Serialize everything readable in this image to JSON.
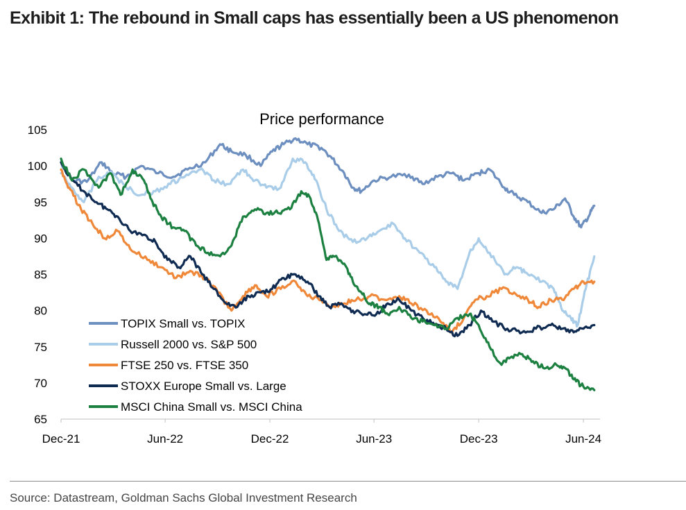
{
  "exhibit": {
    "title": "Exhibit 1: The rebound in Small caps has essentially been a US phenomenon",
    "source": "Source: Datastream, Goldman Sachs Global Investment Research"
  },
  "chart_data": {
    "type": "line",
    "title": "Price performance",
    "xlabel": "",
    "ylabel": "",
    "ylim": [
      65,
      105
    ],
    "yticks": [
      65,
      70,
      75,
      80,
      85,
      90,
      95,
      100,
      105
    ],
    "xlim": [
      "2021-12-01",
      "2024-06-30"
    ],
    "xticks": [
      {
        "label": "Dec-21",
        "date": "2021-12-01"
      },
      {
        "label": "Jun-22",
        "date": "2022-06-01"
      },
      {
        "label": "Dec-22",
        "date": "2022-12-01"
      },
      {
        "label": "Jun-23",
        "date": "2023-06-01"
      },
      {
        "label": "Dec-23",
        "date": "2023-12-01"
      },
      {
        "label": "Jun-24",
        "date": "2024-06-01"
      }
    ],
    "grid": false,
    "legend_position": "bottom-left",
    "series": [
      {
        "name": "TOPIX Small vs. TOPIX",
        "color": "#6d8fc0",
        "points": [
          [
            "2021-12-01",
            100.5
          ],
          [
            "2021-12-20",
            98
          ],
          [
            "2022-01-15",
            97.8
          ],
          [
            "2022-02-10",
            100.5
          ],
          [
            "2022-03-01",
            99
          ],
          [
            "2022-03-25",
            98.5
          ],
          [
            "2022-04-20",
            100
          ],
          [
            "2022-05-20",
            99
          ],
          [
            "2022-06-15",
            98.5
          ],
          [
            "2022-07-10",
            99.5
          ],
          [
            "2022-08-10",
            100.5
          ],
          [
            "2022-09-05",
            103
          ],
          [
            "2022-09-25",
            102
          ],
          [
            "2022-10-20",
            101.5
          ],
          [
            "2022-11-15",
            100
          ],
          [
            "2022-12-05",
            102
          ],
          [
            "2022-12-25",
            103
          ],
          [
            "2023-01-15",
            103.8
          ],
          [
            "2023-02-05",
            103
          ],
          [
            "2023-03-01",
            102.5
          ],
          [
            "2023-03-20",
            101
          ],
          [
            "2023-04-10",
            99
          ],
          [
            "2023-04-25",
            97
          ],
          [
            "2023-05-10",
            96.5
          ],
          [
            "2023-06-01",
            98
          ],
          [
            "2023-07-01",
            98.5
          ],
          [
            "2023-08-01",
            98.8
          ],
          [
            "2023-08-25",
            97.5
          ],
          [
            "2023-09-20",
            98.5
          ],
          [
            "2023-10-15",
            99
          ],
          [
            "2023-11-05",
            98
          ],
          [
            "2023-12-01",
            99
          ],
          [
            "2023-12-20",
            99.5
          ],
          [
            "2024-01-15",
            97
          ],
          [
            "2024-02-01",
            96
          ],
          [
            "2024-02-25",
            95
          ],
          [
            "2024-03-20",
            93.5
          ],
          [
            "2024-04-10",
            94
          ],
          [
            "2024-04-30",
            95.5
          ],
          [
            "2024-05-15",
            93
          ],
          [
            "2024-05-28",
            91.5
          ],
          [
            "2024-06-10",
            93
          ],
          [
            "2024-06-20",
            94.5
          ]
        ]
      },
      {
        "name": "Russell 2000 vs. S&P 500",
        "color": "#a9cde8",
        "points": [
          [
            "2021-12-01",
            99
          ],
          [
            "2021-12-20",
            97
          ],
          [
            "2022-01-10",
            95
          ],
          [
            "2022-02-05",
            98.5
          ],
          [
            "2022-03-01",
            99
          ],
          [
            "2022-03-25",
            97
          ],
          [
            "2022-04-20",
            96
          ],
          [
            "2022-05-15",
            96.5
          ],
          [
            "2022-06-10",
            97.5
          ],
          [
            "2022-07-05",
            98.5
          ],
          [
            "2022-08-01",
            99.5
          ],
          [
            "2022-08-25",
            98
          ],
          [
            "2022-09-20",
            97.5
          ],
          [
            "2022-10-15",
            99.5
          ],
          [
            "2022-11-05",
            98
          ],
          [
            "2022-11-25",
            97
          ],
          [
            "2022-12-20",
            97
          ],
          [
            "2023-01-10",
            101
          ],
          [
            "2023-02-01",
            100.5
          ],
          [
            "2023-02-20",
            98
          ],
          [
            "2023-03-10",
            94
          ],
          [
            "2023-04-01",
            91
          ],
          [
            "2023-04-25",
            89.5
          ],
          [
            "2023-05-20",
            90
          ],
          [
            "2023-06-10",
            91
          ],
          [
            "2023-07-05",
            92
          ],
          [
            "2023-07-25",
            90
          ],
          [
            "2023-08-20",
            88
          ],
          [
            "2023-09-15",
            86
          ],
          [
            "2023-10-05",
            84
          ],
          [
            "2023-10-25",
            83
          ],
          [
            "2023-11-15",
            88
          ],
          [
            "2023-12-01",
            90
          ],
          [
            "2023-12-20",
            88
          ],
          [
            "2024-01-15",
            85
          ],
          [
            "2024-02-05",
            86
          ],
          [
            "2024-02-25",
            85
          ],
          [
            "2024-03-20",
            84
          ],
          [
            "2024-04-10",
            83
          ],
          [
            "2024-04-25",
            80
          ],
          [
            "2024-05-10",
            79
          ],
          [
            "2024-05-22",
            78
          ],
          [
            "2024-06-05",
            83
          ],
          [
            "2024-06-20",
            87.5
          ]
        ]
      },
      {
        "name": "FTSE 250 vs. FTSE 350",
        "color": "#f0883a",
        "points": [
          [
            "2021-12-01",
            99.5
          ],
          [
            "2021-12-15",
            97
          ],
          [
            "2022-01-05",
            94
          ],
          [
            "2022-01-25",
            92
          ],
          [
            "2022-02-15",
            90
          ],
          [
            "2022-03-10",
            91
          ],
          [
            "2022-04-01",
            88.5
          ],
          [
            "2022-05-01",
            87
          ],
          [
            "2022-05-25",
            86
          ],
          [
            "2022-06-20",
            84.5
          ],
          [
            "2022-07-15",
            85.5
          ],
          [
            "2022-08-10",
            84.5
          ],
          [
            "2022-09-01",
            82.5
          ],
          [
            "2022-09-25",
            80
          ],
          [
            "2022-10-15",
            82
          ],
          [
            "2022-11-05",
            83.5
          ],
          [
            "2022-11-25",
            82
          ],
          [
            "2022-12-20",
            83
          ],
          [
            "2023-01-15",
            84
          ],
          [
            "2023-02-05",
            82
          ],
          [
            "2023-03-01",
            81.5
          ],
          [
            "2023-03-20",
            80.5
          ],
          [
            "2023-04-10",
            81
          ],
          [
            "2023-05-01",
            81.5
          ],
          [
            "2023-05-25",
            82
          ],
          [
            "2023-06-20",
            81.5
          ],
          [
            "2023-07-15",
            82
          ],
          [
            "2023-08-05",
            81
          ],
          [
            "2023-09-01",
            80
          ],
          [
            "2023-09-25",
            78.5
          ],
          [
            "2023-10-15",
            77
          ],
          [
            "2023-11-05",
            79
          ],
          [
            "2023-11-25",
            81.5
          ],
          [
            "2023-12-15",
            82
          ],
          [
            "2024-01-10",
            83
          ],
          [
            "2024-02-01",
            82.5
          ],
          [
            "2024-02-25",
            81.5
          ],
          [
            "2024-03-15",
            80.5
          ],
          [
            "2024-04-05",
            81.5
          ],
          [
            "2024-04-25",
            81.5
          ],
          [
            "2024-05-15",
            83
          ],
          [
            "2024-06-01",
            84
          ],
          [
            "2024-06-20",
            84
          ]
        ]
      },
      {
        "name": "STOXX Europe Small vs. Large",
        "color": "#0f2b52",
        "points": [
          [
            "2021-12-01",
            100.5
          ],
          [
            "2021-12-20",
            98
          ],
          [
            "2022-01-10",
            96.5
          ],
          [
            "2022-02-01",
            95
          ],
          [
            "2022-02-20",
            94
          ],
          [
            "2022-03-10",
            93
          ],
          [
            "2022-04-01",
            91
          ],
          [
            "2022-04-25",
            90.5
          ],
          [
            "2022-05-15",
            89.5
          ],
          [
            "2022-06-05",
            87
          ],
          [
            "2022-06-25",
            86
          ],
          [
            "2022-07-15",
            87.5
          ],
          [
            "2022-08-05",
            85
          ],
          [
            "2022-08-25",
            83
          ],
          [
            "2022-09-15",
            81
          ],
          [
            "2022-10-05",
            80.5
          ],
          [
            "2022-10-25",
            82
          ],
          [
            "2022-11-15",
            82.5
          ],
          [
            "2022-12-05",
            83
          ],
          [
            "2022-12-25",
            84.5
          ],
          [
            "2023-01-15",
            85
          ],
          [
            "2023-02-05",
            84
          ],
          [
            "2023-02-25",
            82
          ],
          [
            "2023-03-15",
            80.5
          ],
          [
            "2023-04-05",
            81
          ],
          [
            "2023-04-25",
            80
          ],
          [
            "2023-05-15",
            79.5
          ],
          [
            "2023-06-05",
            79.5
          ],
          [
            "2023-06-25",
            81
          ],
          [
            "2023-07-15",
            81.5
          ],
          [
            "2023-08-05",
            80
          ],
          [
            "2023-08-25",
            79
          ],
          [
            "2023-09-15",
            78
          ],
          [
            "2023-10-05",
            77.5
          ],
          [
            "2023-10-25",
            76.5
          ],
          [
            "2023-11-15",
            78
          ],
          [
            "2023-12-05",
            80
          ],
          [
            "2023-12-25",
            78.5
          ],
          [
            "2024-01-20",
            77.5
          ],
          [
            "2024-02-15",
            77
          ],
          [
            "2024-03-10",
            77.5
          ],
          [
            "2024-04-05",
            78
          ],
          [
            "2024-04-25",
            77.5
          ],
          [
            "2024-05-15",
            77
          ],
          [
            "2024-06-01",
            77.5
          ],
          [
            "2024-06-20",
            78
          ]
        ]
      },
      {
        "name": "MSCI China Small vs. MSCI China",
        "color": "#1b8040",
        "points": [
          [
            "2021-12-01",
            101
          ],
          [
            "2021-12-20",
            98
          ],
          [
            "2022-01-10",
            99.5
          ],
          [
            "2022-02-05",
            97
          ],
          [
            "2022-02-25",
            99
          ],
          [
            "2022-03-15",
            96
          ],
          [
            "2022-04-05",
            99.5
          ],
          [
            "2022-04-25",
            98
          ],
          [
            "2022-05-10",
            95
          ],
          [
            "2022-05-25",
            93
          ],
          [
            "2022-06-15",
            91.5
          ],
          [
            "2022-07-05",
            91
          ],
          [
            "2022-07-25",
            89
          ],
          [
            "2022-08-15",
            88
          ],
          [
            "2022-09-05",
            87.5
          ],
          [
            "2022-09-25",
            89
          ],
          [
            "2022-10-15",
            93
          ],
          [
            "2022-11-05",
            94
          ],
          [
            "2022-11-25",
            93.5
          ],
          [
            "2022-12-15",
            93.5
          ],
          [
            "2023-01-05",
            94
          ],
          [
            "2023-01-25",
            96.5
          ],
          [
            "2023-02-10",
            95.5
          ],
          [
            "2023-02-25",
            92
          ],
          [
            "2023-03-10",
            87
          ],
          [
            "2023-03-25",
            87.5
          ],
          [
            "2023-04-10",
            86.5
          ],
          [
            "2023-04-25",
            84
          ],
          [
            "2023-05-10",
            82.5
          ],
          [
            "2023-05-25",
            81
          ],
          [
            "2023-06-10",
            80.5
          ],
          [
            "2023-06-25",
            79.5
          ],
          [
            "2023-07-15",
            80.5
          ],
          [
            "2023-08-05",
            79
          ],
          [
            "2023-08-25",
            78.5
          ],
          [
            "2023-09-15",
            78
          ],
          [
            "2023-10-05",
            77.5
          ],
          [
            "2023-10-25",
            79
          ],
          [
            "2023-11-15",
            79.5
          ],
          [
            "2023-12-01",
            78
          ],
          [
            "2023-12-20",
            75
          ],
          [
            "2024-01-10",
            72.5
          ],
          [
            "2024-01-25",
            73.5
          ],
          [
            "2024-02-15",
            74
          ],
          [
            "2024-03-05",
            73
          ],
          [
            "2024-03-25",
            72
          ],
          [
            "2024-04-15",
            72.5
          ],
          [
            "2024-05-01",
            72
          ],
          [
            "2024-05-15",
            70.5
          ],
          [
            "2024-06-01",
            69.5
          ],
          [
            "2024-06-20",
            69
          ]
        ]
      }
    ]
  }
}
